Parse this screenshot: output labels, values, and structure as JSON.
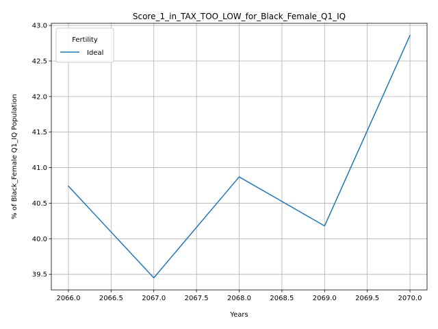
{
  "chart_data": {
    "type": "line",
    "title": "Score_1_in_TAX_TOO_LOW_for_Black_Female_Q1_IQ",
    "xlabel": "Years",
    "ylabel": "% of Black_Female Q1_IQ Population",
    "x": [
      2066,
      2067,
      2068,
      2069,
      2070
    ],
    "series": [
      {
        "name": "Ideal",
        "color": "#1f77b4",
        "values": [
          40.74,
          39.45,
          40.87,
          40.18,
          42.86
        ]
      }
    ],
    "xlim": [
      2065.8,
      2070.2
    ],
    "ylim": [
      39.28,
      43.03
    ],
    "xticks": [
      2066.0,
      2066.5,
      2067.0,
      2067.5,
      2068.0,
      2068.5,
      2069.0,
      2069.5,
      2070.0
    ],
    "xtick_labels": [
      "2066.0",
      "2066.5",
      "2067.0",
      "2067.5",
      "2068.0",
      "2068.5",
      "2069.0",
      "2069.5",
      "2070.0"
    ],
    "yticks": [
      39.5,
      40.0,
      40.5,
      41.0,
      41.5,
      42.0,
      42.5,
      43.0
    ],
    "ytick_labels": [
      "39.5",
      "40.0",
      "40.5",
      "41.0",
      "41.5",
      "42.0",
      "42.5",
      "43.0"
    ],
    "grid": true,
    "legend": {
      "title": "Fertility",
      "placement": "top-left"
    }
  }
}
